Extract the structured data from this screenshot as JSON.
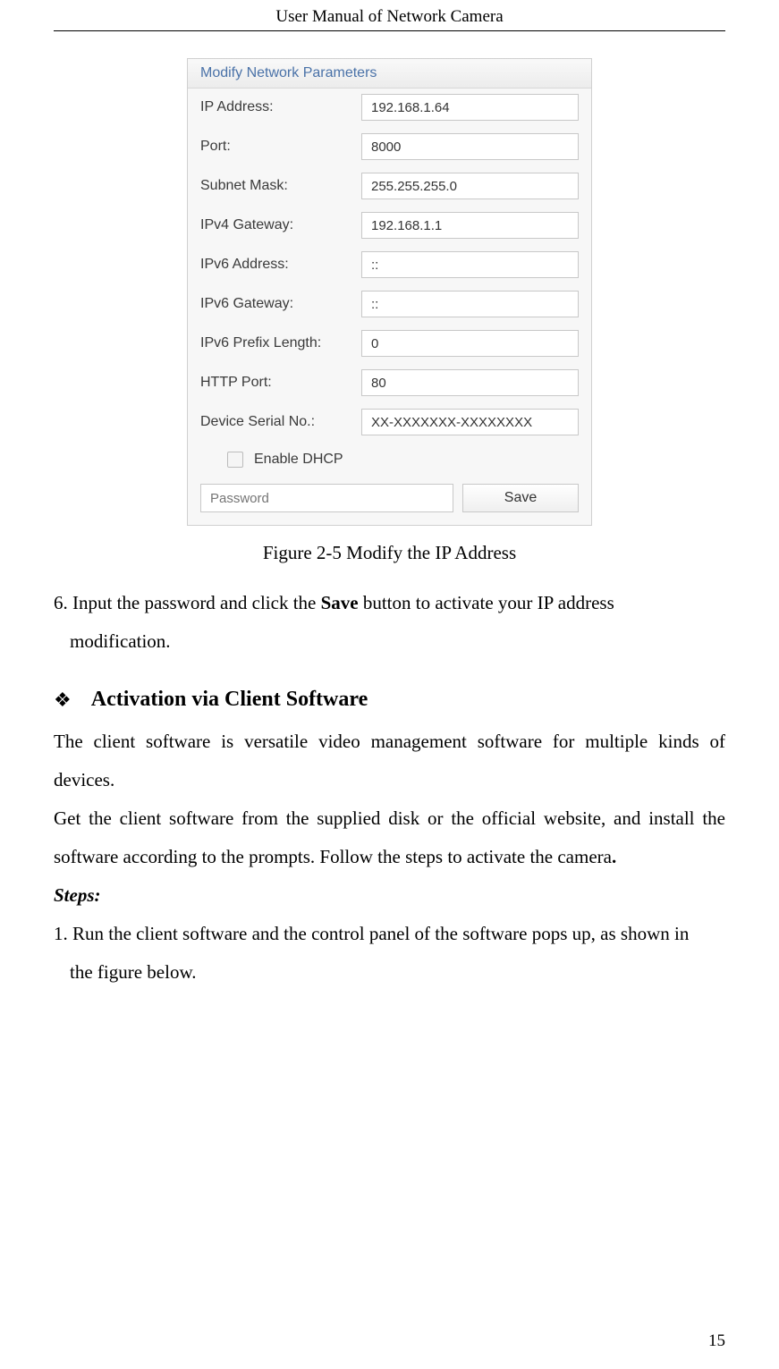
{
  "header": "User Manual of Network Camera",
  "dialog": {
    "title": "Modify Network Parameters",
    "fields": {
      "ipAddress": {
        "label": "IP Address:",
        "value": "192.168.1.64"
      },
      "port": {
        "label": "Port:",
        "value": "8000"
      },
      "subnetMask": {
        "label": "Subnet Mask:",
        "value": "255.255.255.0"
      },
      "ipv4Gateway": {
        "label": "IPv4 Gateway:",
        "value": "192.168.1.1"
      },
      "ipv6Address": {
        "label": "IPv6 Address:",
        "value": "::"
      },
      "ipv6Gateway": {
        "label": "IPv6 Gateway:",
        "value": "::"
      },
      "ipv6PrefixLength": {
        "label": "IPv6 Prefix Length:",
        "value": "0"
      },
      "httpPort": {
        "label": "HTTP Port:",
        "value": "80"
      },
      "deviceSerial": {
        "label": "Device Serial No.:",
        "value": "XX-XXXXXXX-XXXXXXXX"
      }
    },
    "enableDhcp": "Enable DHCP",
    "passwordPlaceholder": "Password",
    "saveButton": "Save"
  },
  "figureCaption": "Figure 2-5 Modify the IP Address",
  "step6_part1": "6. Input the password and click the ",
  "step6_bold": "Save",
  "step6_part2": " button to activate your IP address",
  "step6_line2": "modification.",
  "sectionBullet": "❖",
  "sectionHeading": "Activation via Client Software",
  "para1": "The client software is versatile video management software for multiple kinds of devices.",
  "para2_part1": "Get the client software from the supplied disk or the official website, and install the software according to the prompts. Follow the steps to activate the camera",
  "para2_bold_period": ".",
  "stepsLabel": "Steps:",
  "step1_line1": "1. Run the client software and the control panel of the software pops up, as shown in",
  "step1_line2": "the figure below.",
  "pageNumber": "15"
}
